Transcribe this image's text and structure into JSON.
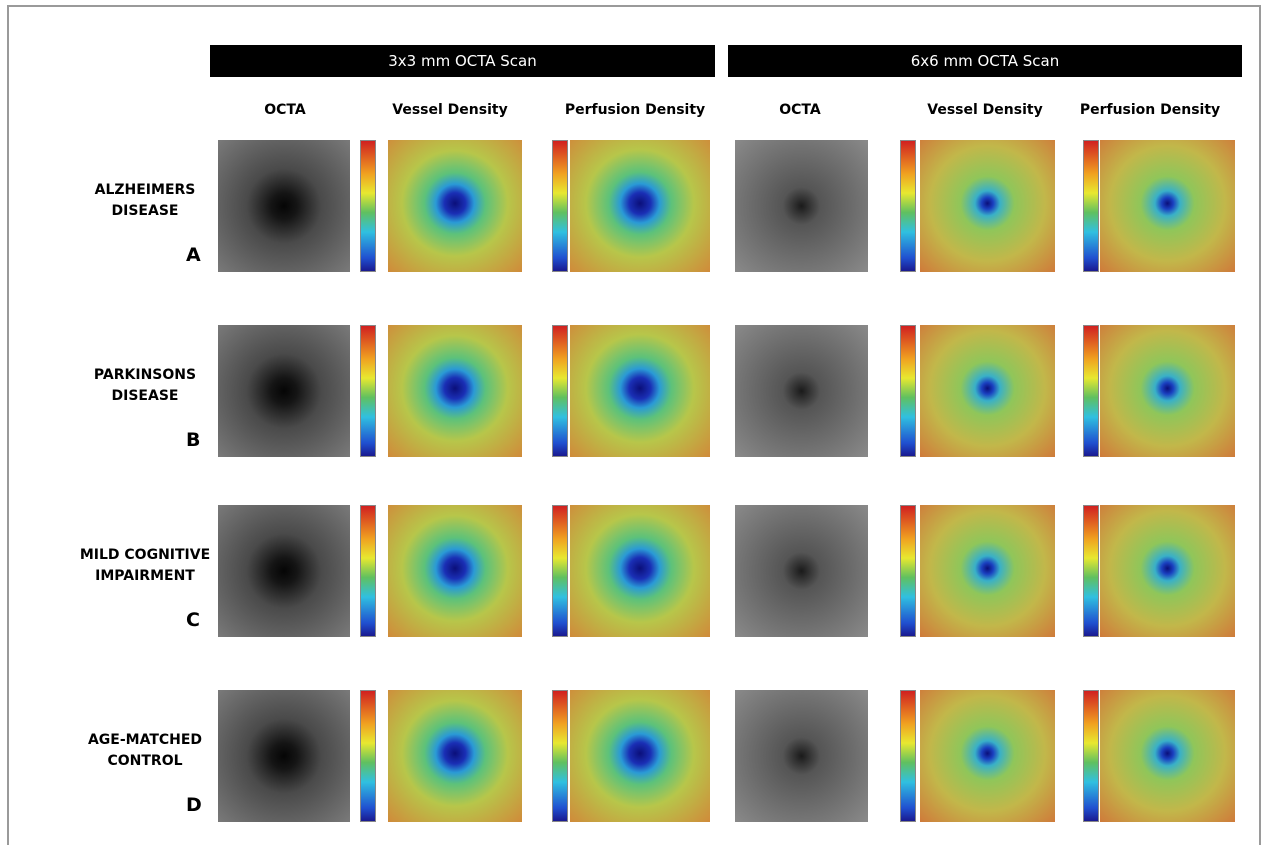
{
  "groups": [
    "3x3 mm OCTA Scan",
    "6x6 mm OCTA Scan"
  ],
  "columns": [
    "OCTA",
    "Vessel Density",
    "Perfusion Density",
    "OCTA",
    "Vessel Density",
    "Perfusion Density"
  ],
  "rows": [
    {
      "label": [
        "ALZHEIMERS",
        "DISEASE"
      ],
      "letter": "A"
    },
    {
      "label": [
        "PARKINSONS",
        "DISEASE"
      ],
      "letter": "B"
    },
    {
      "label": [
        "MILD COGNITIVE",
        "IMPAIRMENT"
      ],
      "letter": "C"
    },
    {
      "label": [
        "AGE-MATCHED",
        "CONTROL"
      ],
      "letter": "D"
    }
  ]
}
